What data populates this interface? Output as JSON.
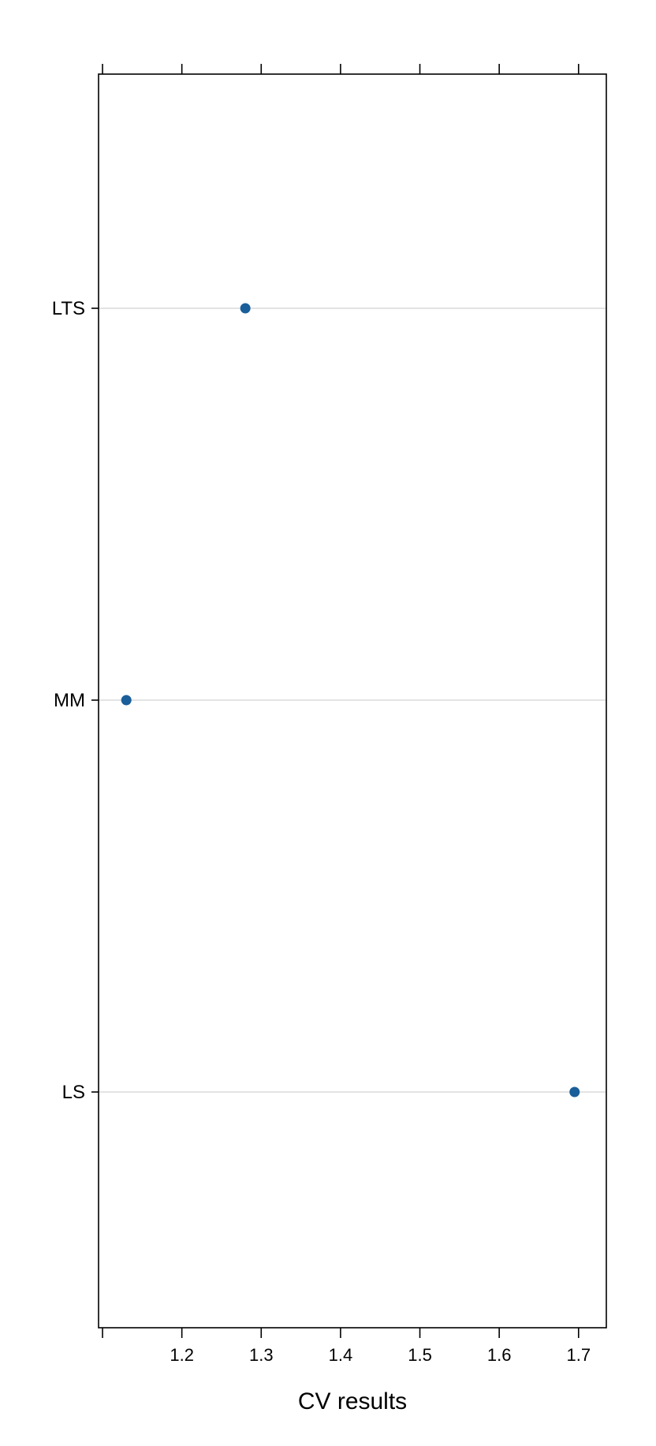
{
  "chart_data": {
    "type": "scatter",
    "title": "",
    "xlabel": "CV results",
    "ylabel": "",
    "xlim": [
      1.095,
      1.735
    ],
    "x_ticks": [
      1.1,
      1.2,
      1.3,
      1.4,
      1.5,
      1.6,
      1.7
    ],
    "x_tick_labels": [
      "",
      "1.2",
      "1.3",
      "1.4",
      "1.5",
      "1.6",
      "1.7"
    ],
    "categories": [
      "LTS",
      "MM",
      "LS"
    ],
    "values": [
      1.28,
      1.13,
      1.695
    ],
    "grid": true,
    "legend": "none",
    "colors": {
      "point": "#1a5e9a",
      "gridline": "#e3e3e3",
      "axis": "#000000"
    }
  }
}
